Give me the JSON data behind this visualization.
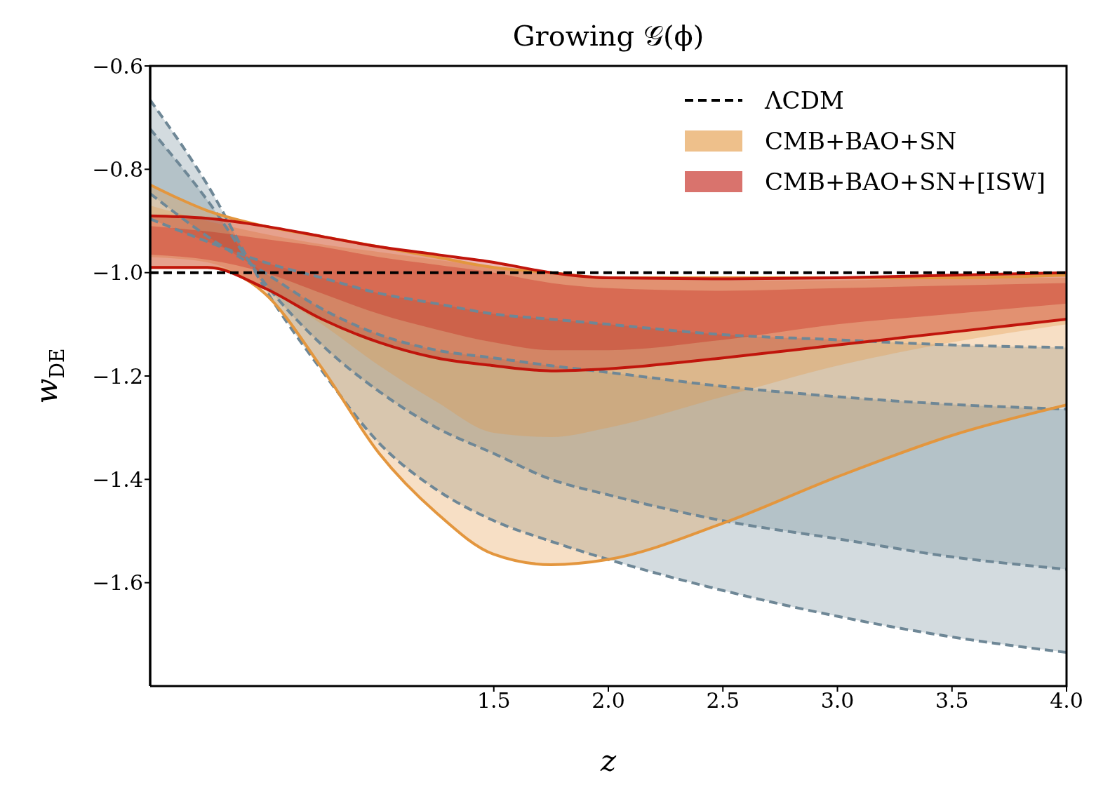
{
  "chart_data": {
    "type": "line",
    "title": "Growing 𝒢(ϕ)",
    "xlabel": "z",
    "ylabel": "w$_{DE}$",
    "x": [
      0,
      0.25,
      0.5,
      0.75,
      1.0,
      1.25,
      1.5,
      1.75,
      2.0,
      2.5,
      3.0,
      3.5,
      4.0
    ],
    "xlim": [
      0,
      4
    ],
    "xticks": [
      1.5,
      {
        "value": 2,
        "label": "2.0"
      },
      2.5,
      {
        "value": 3,
        "label": "3.0"
      },
      3.5,
      {
        "value": 4,
        "label": "4.0"
      }
    ],
    "ylim": [
      -1.8,
      -0.6
    ],
    "yticks": [
      -0.6,
      -0.8,
      {
        "value": -1,
        "label": "−1.0"
      },
      -1.2,
      -1.4,
      -1.6
    ],
    "legend": "top right",
    "series": [
      {
        "color": "#6e8796",
        "line_style": "dashed",
        "values": [
          -0.896,
          -0.94,
          -0.98,
          -1.01,
          -1.04,
          -1.06,
          -1.08,
          -1.09,
          -1.1,
          -1.12,
          -1.13,
          -1.14,
          -1.145
        ],
        "lower": [
          -0.666,
          -0.83,
          -1.03,
          -1.19,
          -1.33,
          -1.42,
          -1.48,
          -1.52,
          -1.555,
          -1.615,
          -1.665,
          -1.705,
          -1.735
        ],
        "upper": [
          -0.896,
          -0.94,
          -0.98,
          -1.01,
          -1.04,
          -1.06,
          -1.08,
          -1.09,
          -1.1,
          -1.12,
          -1.13,
          -1.14,
          -1.145
        ]
      },
      {
        "color": "#6e8796",
        "line_style": "dashed",
        "values": [
          -0.847,
          -0.93,
          -1.0,
          -1.07,
          -1.12,
          -1.15,
          -1.165,
          -1.18,
          -1.193,
          -1.22,
          -1.24,
          -1.255,
          -1.264
        ],
        "lower": [
          -0.722,
          -0.86,
          -1.02,
          -1.14,
          -1.23,
          -1.3,
          -1.35,
          -1.4,
          -1.43,
          -1.48,
          -1.515,
          -1.55,
          -1.574
        ],
        "upper": [
          -0.847,
          -0.93,
          -1.0,
          -1.07,
          -1.12,
          -1.15,
          -1.165,
          -1.18,
          -1.193,
          -1.22,
          -1.24,
          -1.255,
          -1.264
        ]
      },
      {
        "color": "#6e8796",
        "line_style": "dashed",
        "values": [
          -0.666,
          -0.83,
          -1.03,
          -1.19,
          -1.33,
          -1.42,
          -1.48,
          -1.52,
          -1.555,
          -1.615,
          -1.665,
          -1.705,
          -1.735
        ]
      },
      {
        "color": "#6e8796",
        "line_style": "dashed",
        "values": [
          -0.722,
          -0.86,
          -1.02,
          -1.14,
          -1.23,
          -1.3,
          -1.35,
          -1.4,
          -1.43,
          -1.48,
          -1.515,
          -1.55,
          -1.574
        ]
      },
      {
        "name": "CMB+BAO+SN",
        "color": "#e3963e",
        "line_style": "solid",
        "values": [
          -0.83,
          -0.88,
          -0.91,
          -0.93,
          -0.95,
          -0.97,
          -0.99,
          -1.0,
          -1.01,
          -1.01,
          -1.01,
          -1.01,
          -1.005
        ],
        "lower": [
          -0.99,
          -0.99,
          -1.04,
          -1.185,
          -1.35,
          -1.465,
          -1.545,
          -1.565,
          -1.555,
          -1.485,
          -1.395,
          -1.315,
          -1.256
        ],
        "upper": [
          -0.83,
          -0.88,
          -0.91,
          -0.93,
          -0.95,
          -0.97,
          -0.99,
          -1.0,
          -1.01,
          -1.01,
          -1.01,
          -1.01,
          -1.005
        ]
      },
      {
        "color": "#e3963e",
        "line_style": "solid",
        "values": [
          -0.99,
          -0.99,
          -1.04,
          -1.185,
          -1.35,
          -1.465,
          -1.545,
          -1.565,
          -1.555,
          -1.485,
          -1.395,
          -1.315,
          -1.256
        ],
        "lower": [
          -0.97,
          -0.98,
          -1.03,
          -1.1,
          -1.18,
          -1.25,
          -1.31,
          -1.318,
          -1.3,
          -1.24,
          -1.18,
          -1.135,
          -1.1
        ],
        "upper": [
          -0.87,
          -0.9,
          -0.925,
          -0.945,
          -0.96,
          -0.975,
          -0.99,
          -1.0,
          -1.01,
          -1.015,
          -1.015,
          -1.01,
          -1.01
        ]
      },
      {
        "name": "CMB+BAO+SN+[ISW]",
        "color": "#c0150c",
        "line_style": "solid",
        "values": [
          -0.89,
          -0.895,
          -0.91,
          -0.93,
          -0.95,
          -0.965,
          -0.98,
          -1.0,
          -1.01,
          -1.012,
          -1.01,
          -1.005,
          -1.0
        ],
        "lower": [
          -0.99,
          -0.99,
          -1.03,
          -1.09,
          -1.135,
          -1.165,
          -1.18,
          -1.19,
          -1.186,
          -1.165,
          -1.14,
          -1.115,
          -1.09
        ],
        "upper": [
          -0.89,
          -0.895,
          -0.91,
          -0.93,
          -0.95,
          -0.965,
          -0.98,
          -1.0,
          -1.01,
          -1.012,
          -1.01,
          -1.005,
          -1.0
        ]
      },
      {
        "color": "#c0150c",
        "line_style": "solid",
        "values": [
          -0.99,
          -0.99,
          -1.03,
          -1.09,
          -1.135,
          -1.165,
          -1.18,
          -1.19,
          -1.186,
          -1.165,
          -1.14,
          -1.115,
          -1.09
        ],
        "lower": [
          -0.965,
          -0.975,
          -1.0,
          -1.04,
          -1.08,
          -1.11,
          -1.135,
          -1.15,
          -1.15,
          -1.13,
          -1.1,
          -1.08,
          -1.06
        ],
        "upper": [
          -0.91,
          -0.92,
          -0.935,
          -0.95,
          -0.97,
          -0.985,
          -1.0,
          -1.02,
          -1.03,
          -1.035,
          -1.03,
          -1.025,
          -1.02
        ]
      },
      {
        "name": "ΛCDM",
        "color": "#000000",
        "line_style": "dashed",
        "values": [
          -1.0,
          -1.0,
          -1.0,
          -1.0,
          -1.0,
          -1.0,
          -1.0,
          -1.0,
          -1.0,
          -1.0,
          -1.0,
          -1.0,
          -1.0
        ]
      }
    ]
  }
}
